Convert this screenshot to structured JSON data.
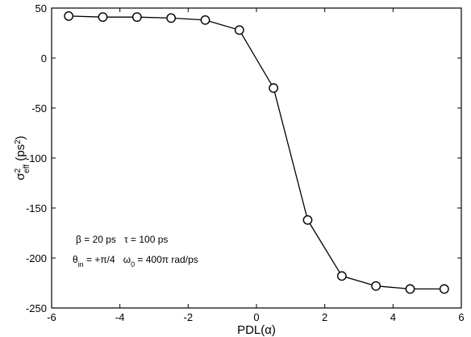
{
  "chart_data": {
    "type": "line",
    "x": [
      -5.5,
      -4.5,
      -3.5,
      -2.5,
      -1.5,
      -0.5,
      0.5,
      1.5,
      2.5,
      3.5,
      4.5,
      5.5
    ],
    "series": [
      {
        "values": [
          42,
          41,
          41,
          40,
          38,
          28,
          -30,
          -162,
          -218,
          -228,
          -231,
          -231
        ]
      }
    ],
    "xlim": [
      -6,
      6
    ],
    "ylim": [
      -250,
      50
    ],
    "x_ticks": [
      -6,
      -4,
      -2,
      0,
      2,
      4,
      6
    ],
    "y_ticks": [
      50,
      0,
      -50,
      -100,
      -150,
      -200,
      -250
    ],
    "x_tick_labels": [
      "-6",
      "-4",
      "-2",
      "0",
      "2",
      "4",
      "6"
    ],
    "y_tick_labels": [
      "50",
      "0",
      "-50",
      "-100",
      "-150",
      "-200",
      "-250"
    ],
    "xlabel": "PDL(α)",
    "ylabel": {
      "sigma": "σ",
      "sup": "2",
      "sub": "eff",
      "rest": " (ps",
      "unit_sup": "2",
      "close": ")"
    },
    "grid": false,
    "marker": "open-circle",
    "line_color": "#000000",
    "annotation": {
      "line1_a": "β = 20 ps",
      "line1_b": "τ = 100 ps",
      "line2_theta": "θ",
      "line2_theta_sub": "in",
      "line2_theta_rest": " = +π/4",
      "line2_omega": "ω",
      "line2_omega_sub": "0",
      "line2_omega_rest": " = 400π rad/ps"
    }
  }
}
